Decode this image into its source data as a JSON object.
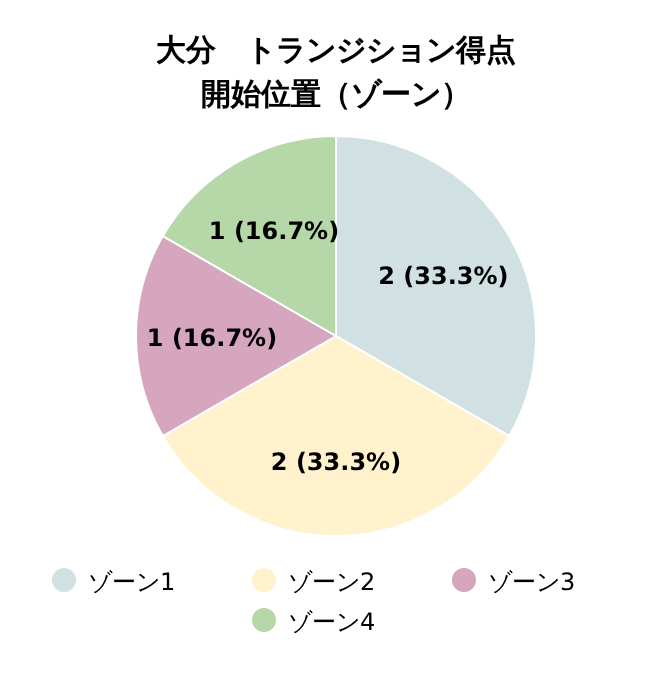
{
  "chart_data": {
    "type": "pie",
    "title": "大分　トランジション得点",
    "subtitle": "開始位置（ゾーン）",
    "categories": [
      "ゾーン1",
      "ゾーン2",
      "ゾーン3",
      "ゾーン4"
    ],
    "values": [
      2,
      2,
      1,
      1
    ],
    "value_labels": [
      "2 (33.3%)",
      "2 (33.3%)",
      "1 (16.7%)",
      "1 (16.7%)"
    ],
    "colors": [
      "#d0e0e3",
      "#fff2cc",
      "#d5a6bd",
      "#b6d7a8"
    ],
    "legend": "bottom"
  }
}
